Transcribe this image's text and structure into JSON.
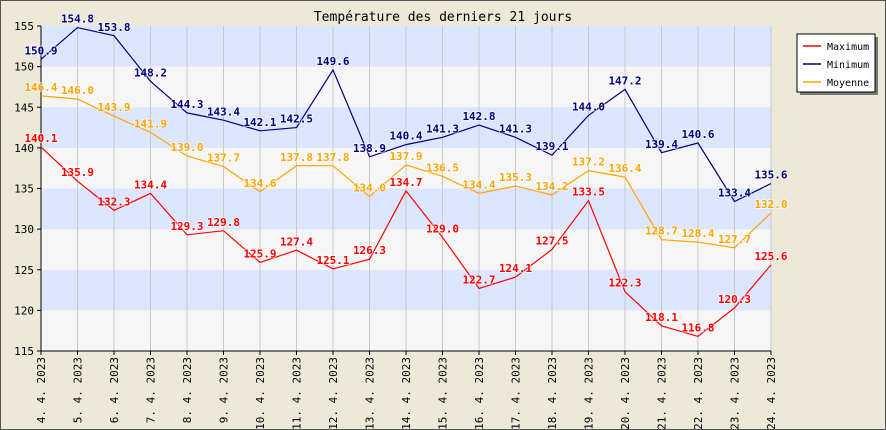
{
  "chart_data": {
    "type": "line",
    "title": "Température des derniers 21 jours",
    "xlabel": "",
    "ylabel": "",
    "x": [
      "4. 4. 2023",
      "5. 4. 2023",
      "6. 4. 2023",
      "7. 4. 2023",
      "8. 4. 2023",
      "9. 4. 2023",
      "10. 4. 2023",
      "11. 4. 2023",
      "12. 4. 2023",
      "13. 4. 2023",
      "14. 4. 2023",
      "15. 4. 2023",
      "16. 4. 2023",
      "17. 4. 2023",
      "18. 4. 2023",
      "19. 4. 2023",
      "20. 4. 2023",
      "21. 4. 2023",
      "22. 4. 2023",
      "23. 4. 2023",
      "24. 4. 2023"
    ],
    "ylim": [
      115,
      155
    ],
    "yticks": [
      115,
      120,
      125,
      130,
      135,
      140,
      145,
      150,
      155
    ],
    "grid": true,
    "legend_position": "top-right",
    "series": [
      {
        "name": "Maximum",
        "color": "#ff0000",
        "values": [
          140.1,
          135.9,
          132.3,
          134.4,
          129.3,
          129.8,
          125.9,
          127.4,
          125.1,
          126.3,
          134.7,
          129.0,
          122.7,
          124.1,
          127.5,
          133.5,
          122.3,
          118.1,
          116.8,
          120.3,
          125.6
        ],
        "labels": [
          "140.1",
          "135.9",
          "132.3",
          "134.4",
          "129.3",
          "129.8",
          "125.9",
          "127.4",
          "125.1",
          "126.3",
          "134.7",
          "129.0",
          "122.7",
          "124.1",
          "127.5",
          "133.5",
          "122.3",
          "118.1",
          "116.8",
          "120.3",
          "125.6"
        ]
      },
      {
        "name": "Minimum",
        "color": "#000080",
        "values": [
          150.9,
          154.8,
          153.8,
          148.2,
          144.3,
          143.4,
          142.1,
          142.5,
          149.6,
          138.9,
          140.4,
          141.3,
          142.8,
          141.3,
          139.1,
          144.0,
          147.2,
          139.4,
          140.6,
          133.4,
          135.6
        ],
        "labels": [
          "150.9",
          "154.8",
          "153.8",
          "148.2",
          "144.3",
          "143.4",
          "142.1",
          "142.5",
          "149.6",
          "138.9",
          "140.4",
          "141.3",
          "142.8",
          "141.3",
          "139.1",
          "144.0",
          "147.2",
          "139.4",
          "140.6",
          "133.4",
          "135.6"
        ]
      },
      {
        "name": "Moyenne",
        "color": "#ffa500",
        "values": [
          146.4,
          146.0,
          143.9,
          141.9,
          139.0,
          137.7,
          134.6,
          137.8,
          137.8,
          134.0,
          137.9,
          136.5,
          134.4,
          135.3,
          134.2,
          137.2,
          136.4,
          128.7,
          128.4,
          127.7,
          132.0
        ],
        "labels": [
          "146.4",
          "146.0",
          "143.9",
          "141.9",
          "139.0",
          "137.7",
          "134.6",
          "137.8",
          "137.8",
          "134.0",
          "137.9",
          "136.5",
          "134.4",
          "135.3",
          "134.2",
          "137.2",
          "136.4",
          "128.7",
          "128.4",
          "127.7",
          "132.0"
        ]
      }
    ]
  },
  "colors": {
    "background": "#ece9d8",
    "plot_band_light": "#f6f6f6",
    "plot_band_dark": "#dde6ff",
    "grid": "#c8c8c8"
  }
}
